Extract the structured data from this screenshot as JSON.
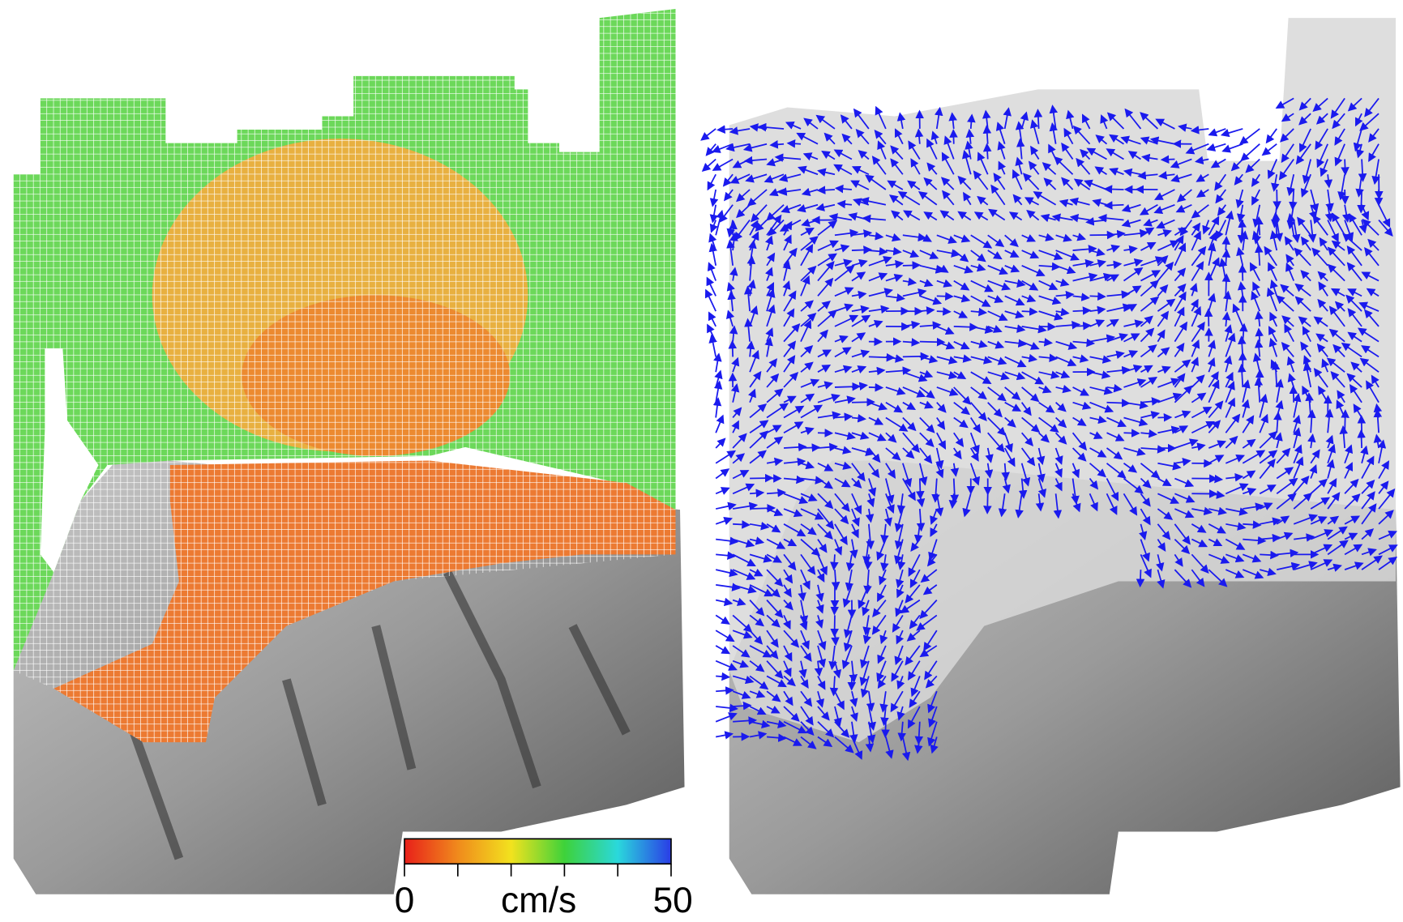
{
  "chart_data": {
    "type": "colorbar",
    "unit": "cm/s",
    "lim": [
      0,
      50
    ],
    "ticks": [
      0,
      10,
      20,
      30,
      40,
      50
    ],
    "colors": [
      "#e8201a",
      "#f08a1c",
      "#f2e21e",
      "#3ed23a",
      "#2ad8dc",
      "#2a3ce6"
    ]
  }
}
